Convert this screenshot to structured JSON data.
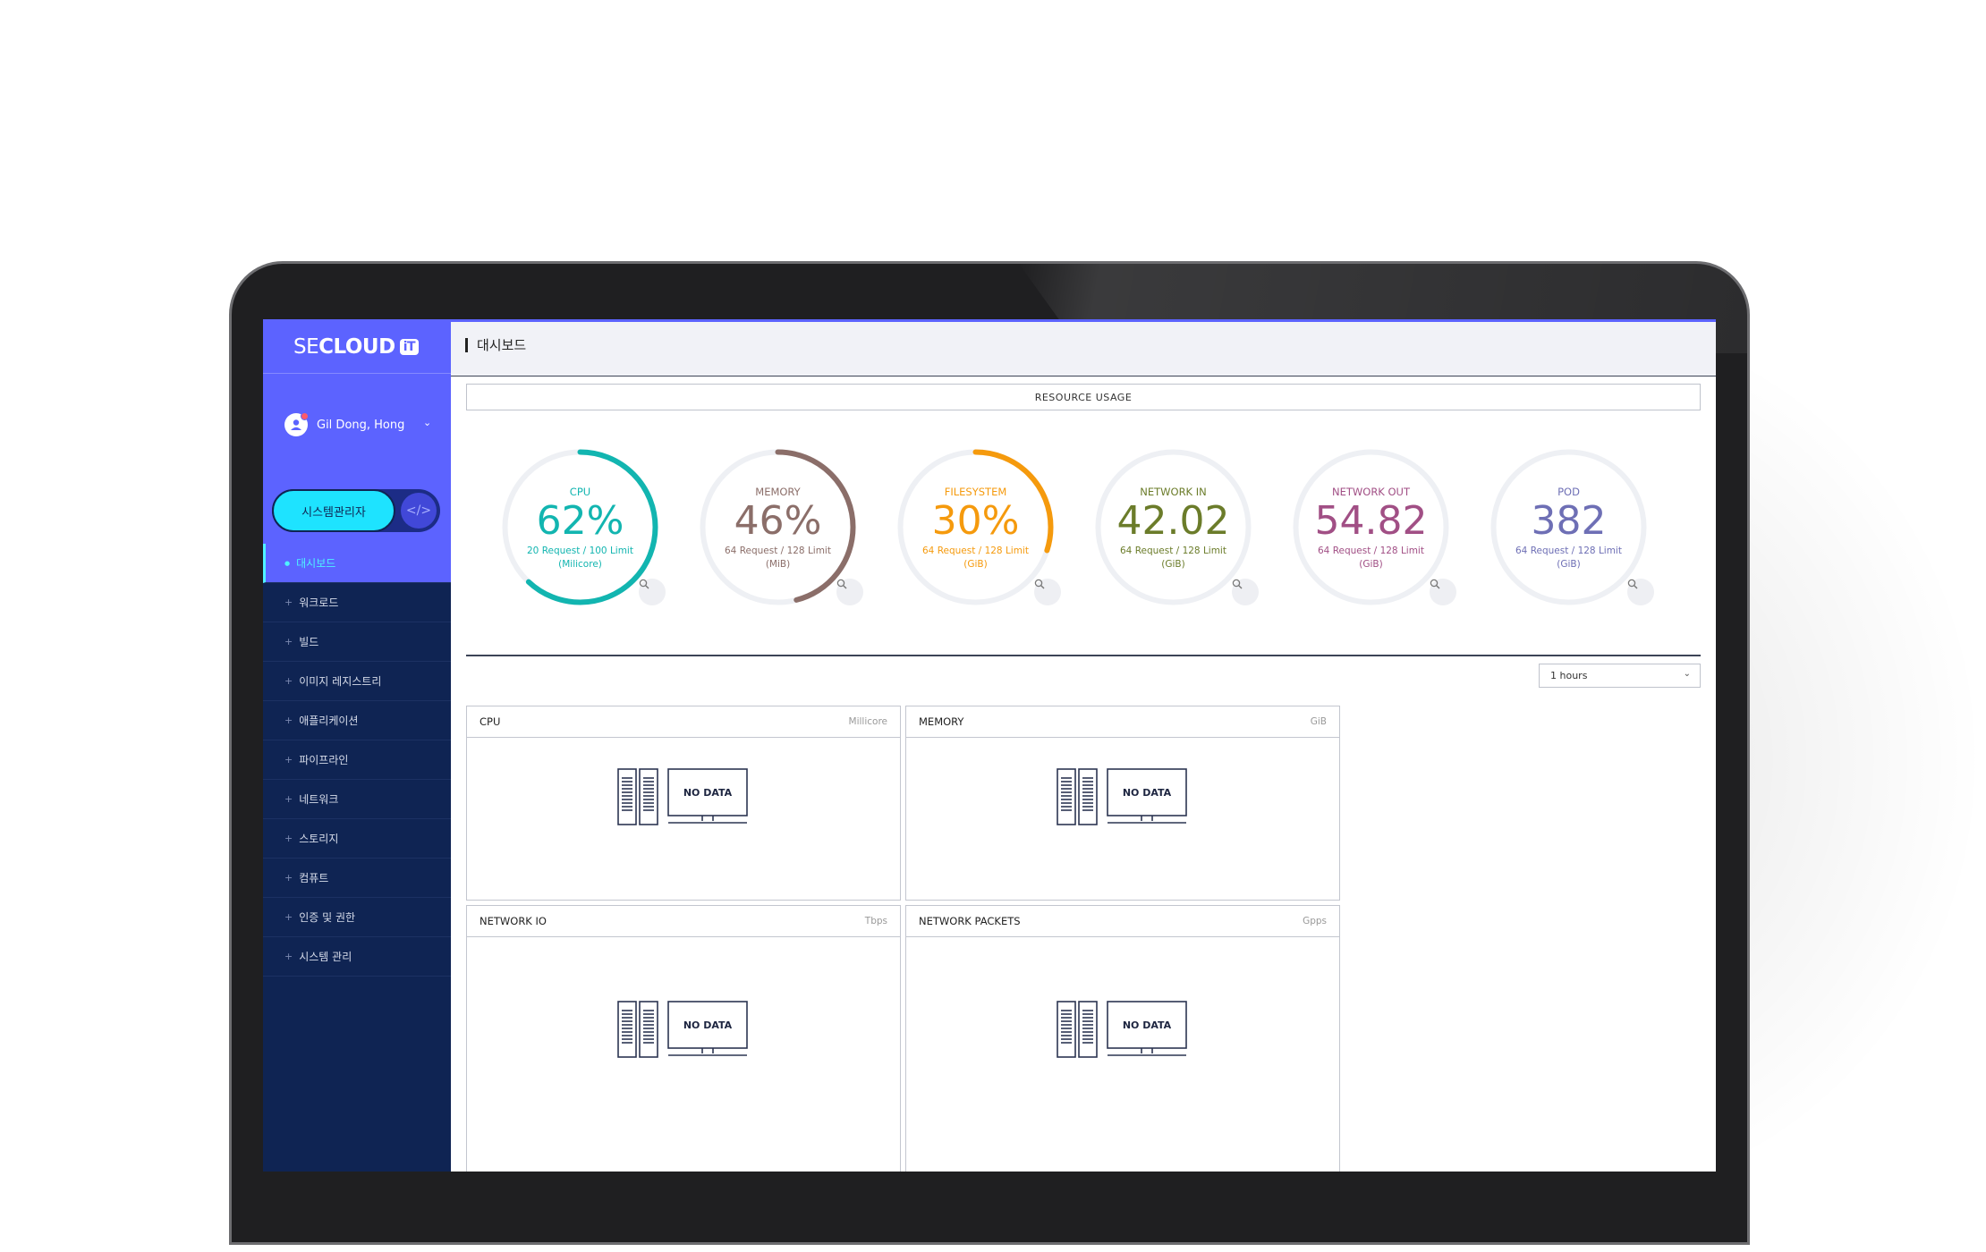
{
  "brand": {
    "se": "SE",
    "cloud": "CLOUD",
    "it": "iT"
  },
  "user": {
    "name": "Gil Dong, Hong"
  },
  "role": {
    "label": "시스템관리자",
    "code_icon": "</>"
  },
  "menu": [
    {
      "label": "대시보드",
      "active": true
    },
    {
      "label": "워크로드"
    },
    {
      "label": "빌드"
    },
    {
      "label": "이미지 레지스트리"
    },
    {
      "label": "애플리케이션"
    },
    {
      "label": "파이프라인"
    },
    {
      "label": "네트워크"
    },
    {
      "label": "스토리지"
    },
    {
      "label": "컴퓨트"
    },
    {
      "label": "인증 및 권한"
    },
    {
      "label": "시스템 관리"
    }
  ],
  "header": {
    "title": "대시보드"
  },
  "resource_usage": {
    "title": "RESOURCE USAGE",
    "gauges": [
      {
        "label": "CPU",
        "value": "62%",
        "percent": 62,
        "sub1": "20 Request / 100 Limit",
        "sub2": "(Milicore)",
        "color": "#12b5b0"
      },
      {
        "label": "MEMORY",
        "value": "46%",
        "percent": 46,
        "sub1": "64 Request / 128 Limit",
        "sub2": "(MiB)",
        "color": "#8b6e69"
      },
      {
        "label": "FILESYSTEM",
        "value": "30%",
        "percent": 30,
        "sub1": "64 Request / 128 Limit",
        "sub2": "(GiB)",
        "color": "#f59a0d"
      },
      {
        "label": "NETWORK IN",
        "value": "42.02",
        "percent": 0,
        "sub1": "64 Request / 128 Limit",
        "sub2": "(GiB)",
        "color": "#6b7c2a"
      },
      {
        "label": "NETWORK OUT",
        "value": "54.82",
        "percent": 0,
        "sub1": "64 Request / 128 Limit",
        "sub2": "(GiB)",
        "color": "#a14f85"
      },
      {
        "label": "POD",
        "value": "382",
        "percent": 0,
        "sub1": "64 Request / 128 Limit",
        "sub2": "(GiB)",
        "color": "#6e6fb5"
      }
    ]
  },
  "time_range": {
    "selected": "1 hours"
  },
  "panels": [
    {
      "title": "CPU",
      "unit": "Millicore",
      "empty": "NO DATA"
    },
    {
      "title": "MEMORY",
      "unit": "GiB",
      "empty": "NO DATA"
    },
    {
      "title": "NETWORK IO",
      "unit": "Tbps",
      "empty": "NO DATA"
    },
    {
      "title": "NETWORK PACKETS",
      "unit": "Gpps",
      "empty": "NO DATA"
    }
  ],
  "icons": {
    "avatar": "user-avatar-icon",
    "chevron": "chevron-down-icon",
    "zoom": "magnifier-icon",
    "nodata": "server-monitor-icon"
  }
}
